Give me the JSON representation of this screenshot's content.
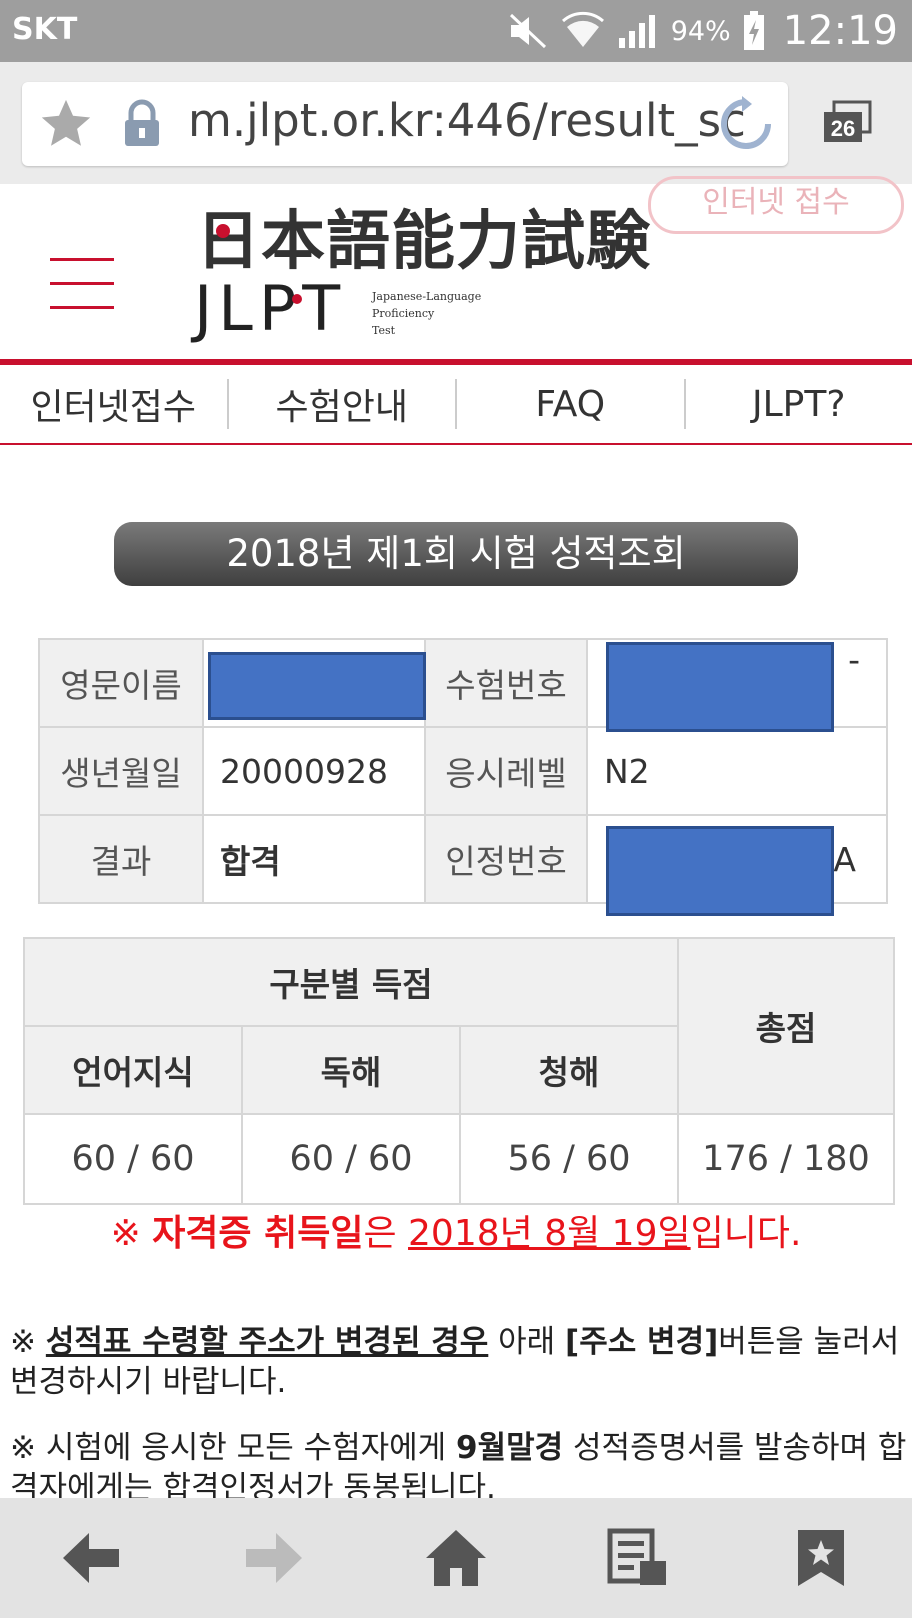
{
  "status_bar": {
    "carrier": "SKT",
    "battery_percent": "94%",
    "time": "12:19"
  },
  "browser": {
    "url": "m.jlpt.or.kr:446/result_sc",
    "tab_count": "26"
  },
  "site_header": {
    "logo_japanese": "日本語能力試験",
    "logo_latin": "JLPT",
    "logo_subtitle": [
      "Japanese-Language",
      "Proficiency",
      "Test"
    ],
    "register_button": "인터넷 접수"
  },
  "nav": {
    "items": [
      "인터넷접수",
      "수험안내",
      "FAQ",
      "JLPT?"
    ]
  },
  "result_title": "2018년 제1회 시험 성적조회",
  "info_table": {
    "english_name_label": "영문이름",
    "exam_number_label": "수험번호",
    "birth_date_label": "생년월일",
    "birth_date_value": "20000928",
    "level_label": "응시레벨",
    "level_value": "N2",
    "result_label": "결과",
    "result_value": "합격",
    "cert_number_label": "인정번호",
    "exam_number_tail": "-",
    "cert_number_tail": "A"
  },
  "score_table": {
    "section_header": "구분별 득점",
    "total_header": "총점",
    "columns": [
      "언어지식",
      "독해",
      "청해"
    ],
    "scores": [
      "60 / 60",
      "60 / 60",
      "56 / 60"
    ],
    "total": "176 / 180"
  },
  "cert_notice": {
    "mark": "※ ",
    "lead": "자격증 취득일",
    "particle": "은 ",
    "date": "2018년 8월 19일",
    "suffix": "입니다."
  },
  "notices": {
    "address_mark": "※ ",
    "address_emph": "성적표 수령할 주소가 변경된 경우",
    "address_mid": "  아래 ",
    "address_btn": "[주소 변경]",
    "address_end": "버튼을 눌러서 변경하시기 바랍니다.",
    "mail_mark": "※ ",
    "mail_start": "시험에 응시한 모든 수험자에게 ",
    "mail_emph": "9월말경",
    "mail_end": " 성적증명서를 발송하며 합격자에게는 합격인정서가 동봉됩니다."
  }
}
